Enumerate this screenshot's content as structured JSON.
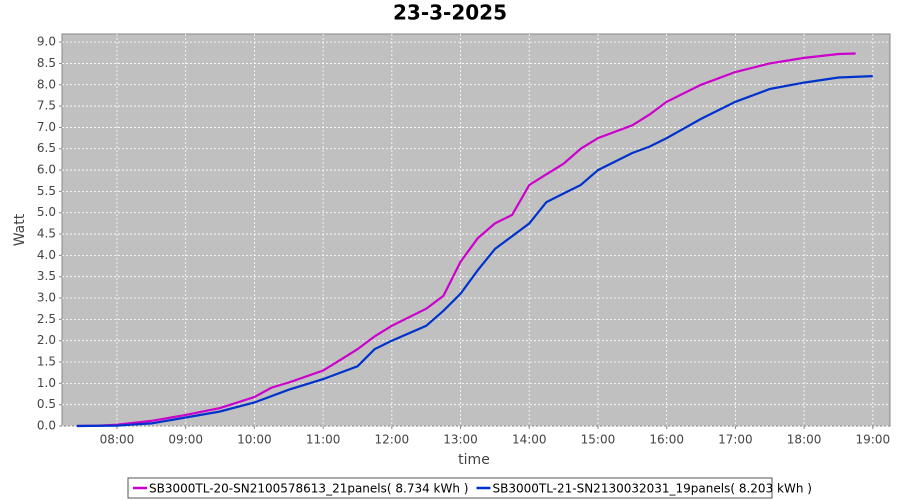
{
  "chart_data": {
    "type": "line",
    "title": "23-3-2025",
    "x_label": "time",
    "y_label": "Watt",
    "xlim": [
      "07:12",
      "19:15"
    ],
    "xticks": [
      "08:00",
      "09:00",
      "10:00",
      "11:00",
      "12:00",
      "13:00",
      "14:00",
      "15:00",
      "16:00",
      "17:00",
      "18:00",
      "19:00"
    ],
    "ylim": [
      0,
      9.19
    ],
    "yticks": [
      {
        "value": 0,
        "label": "0.0"
      },
      {
        "value": 0.5,
        "label": "0.5"
      },
      {
        "value": 1,
        "label": "1.0"
      },
      {
        "value": 1.5,
        "label": "1.5"
      },
      {
        "value": 2,
        "label": "2.0"
      },
      {
        "value": 2.5,
        "label": "2.5"
      },
      {
        "value": 3,
        "label": "3.0"
      },
      {
        "value": 3.5,
        "label": "3.5"
      },
      {
        "value": 4,
        "label": "4.0"
      },
      {
        "value": 4.5,
        "label": "4.5"
      },
      {
        "value": 5,
        "label": "5.0"
      },
      {
        "value": 5.5,
        "label": "5.5"
      },
      {
        "value": 6,
        "label": "6.0"
      },
      {
        "value": 6.5,
        "label": "6.5"
      },
      {
        "value": 7,
        "label": "7.0"
      },
      {
        "value": 7.5,
        "label": "7.5"
      },
      {
        "value": 8,
        "label": "8.0"
      },
      {
        "value": 8.5,
        "label": "8.5"
      },
      {
        "value": 9,
        "label": "9.0"
      }
    ],
    "grid": true,
    "legend": "bottom",
    "series": [
      {
        "name": "SB3000TL-20-SN2100578613_21panels( 8.734 kWh )",
        "color": "#cc00cc",
        "x": [
          "07:25",
          "07:45",
          "08:00",
          "08:30",
          "09:00",
          "09:30",
          "10:00",
          "10:15",
          "10:30",
          "11:00",
          "11:15",
          "11:30",
          "11:45",
          "12:00",
          "12:30",
          "12:45",
          "13:00",
          "13:15",
          "13:30",
          "13:45",
          "14:00",
          "14:15",
          "14:30",
          "14:45",
          "15:00",
          "15:30",
          "15:45",
          "16:00",
          "16:30",
          "17:00",
          "17:30",
          "18:00",
          "18:30",
          "18:45"
        ],
        "values": [
          0.0,
          0.01,
          0.03,
          0.12,
          0.26,
          0.42,
          0.68,
          0.9,
          1.02,
          1.3,
          1.55,
          1.8,
          2.1,
          2.35,
          2.75,
          3.05,
          3.85,
          4.4,
          4.75,
          4.95,
          5.65,
          5.9,
          6.15,
          6.5,
          6.75,
          7.05,
          7.3,
          7.6,
          8.0,
          8.3,
          8.5,
          8.63,
          8.72,
          8.734
        ]
      },
      {
        "name": "SB3000TL-21-SN2130032031_19panels( 8.203 kWh )",
        "color": "#0033cc",
        "x": [
          "07:25",
          "08:00",
          "08:30",
          "09:00",
          "09:30",
          "10:00",
          "10:30",
          "11:00",
          "11:30",
          "11:45",
          "12:00",
          "12:30",
          "12:45",
          "13:00",
          "13:15",
          "13:30",
          "13:45",
          "14:00",
          "14:15",
          "14:30",
          "14:45",
          "15:00",
          "15:30",
          "15:45",
          "16:00",
          "16:30",
          "17:00",
          "17:30",
          "18:00",
          "18:30",
          "19:00"
        ],
        "values": [
          0.0,
          0.01,
          0.06,
          0.2,
          0.34,
          0.55,
          0.85,
          1.1,
          1.4,
          1.8,
          2.0,
          2.35,
          2.7,
          3.1,
          3.65,
          4.15,
          4.45,
          4.75,
          5.25,
          5.45,
          5.65,
          6.0,
          6.4,
          6.55,
          6.75,
          7.2,
          7.6,
          7.9,
          8.05,
          8.17,
          8.203
        ]
      }
    ]
  }
}
